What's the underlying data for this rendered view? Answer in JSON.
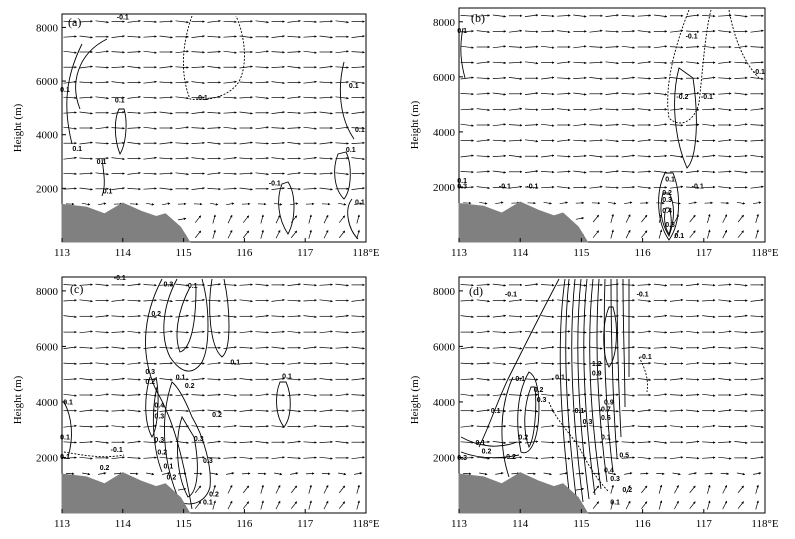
{
  "chart_data": [
    {
      "type": "contour",
      "panel": "(a)",
      "ylabel": "Height (m)",
      "x_ticks": [
        "113",
        "114",
        "115",
        "116",
        "117",
        "118°E"
      ],
      "y_ticks": [
        "2000",
        "4000",
        "6000",
        "8000"
      ],
      "xlim": [
        113,
        118
      ],
      "ylim": [
        0,
        8500
      ],
      "terrain": [
        [
          113,
          1400
        ],
        [
          113.4,
          1300
        ],
        [
          113.7,
          1050
        ],
        [
          114.0,
          1450
        ],
        [
          114.3,
          1150
        ],
        [
          114.55,
          950
        ],
        [
          114.7,
          1050
        ],
        [
          114.95,
          550
        ],
        [
          115.1,
          0
        ]
      ],
      "contour_labels": [
        {
          "text": "-0.1",
          "x": 114.0,
          "y": 8300
        },
        {
          "text": "0.1",
          "x": 113.05,
          "y": 5600
        },
        {
          "text": "0.1",
          "x": 113.95,
          "y": 5200
        },
        {
          "text": "-0.1",
          "x": 115.3,
          "y": 5300
        },
        {
          "text": "0.1",
          "x": 113.25,
          "y": 3400
        },
        {
          "text": "0.1",
          "x": 113.65,
          "y": 2900
        },
        {
          "text": "0.1",
          "x": 117.8,
          "y": 5750
        },
        {
          "text": "0.1",
          "x": 117.9,
          "y": 4100
        },
        {
          "text": "0.1",
          "x": 117.75,
          "y": 3350
        },
        {
          "text": "0.1",
          "x": 113.75,
          "y": 1800
        },
        {
          "text": "-0.1",
          "x": 116.5,
          "y": 2100
        },
        {
          "text": "0.1",
          "x": 117.9,
          "y": 1400
        }
      ]
    },
    {
      "type": "contour",
      "panel": "(b)",
      "ylabel": "Height (m)",
      "x_ticks": [
        "113",
        "114",
        "115",
        "116",
        "117",
        "118°E"
      ],
      "y_ticks": [
        "2000",
        "4000",
        "6000",
        "8000"
      ],
      "xlim": [
        113,
        118
      ],
      "ylim": [
        0,
        8500
      ],
      "terrain": [
        [
          113,
          1400
        ],
        [
          113.4,
          1300
        ],
        [
          113.7,
          1050
        ],
        [
          114.0,
          1450
        ],
        [
          114.3,
          1150
        ],
        [
          114.55,
          950
        ],
        [
          114.7,
          1050
        ],
        [
          114.95,
          550
        ],
        [
          115.1,
          0
        ]
      ],
      "contour_labels": [
        {
          "text": "0.1",
          "x": 113.05,
          "y": 7600
        },
        {
          "text": "-0.1",
          "x": 116.8,
          "y": 7400
        },
        {
          "text": "-0.1",
          "x": 117.05,
          "y": 5200
        },
        {
          "text": "-0.1",
          "x": 117.9,
          "y": 6100
        },
        {
          "text": "-0.2",
          "x": 116.65,
          "y": 5200
        },
        {
          "text": "0.1",
          "x": 113.05,
          "y": 2150
        },
        {
          "text": "0.3",
          "x": 113.05,
          "y": 1950
        },
        {
          "text": "-0.1",
          "x": 113.75,
          "y": 1950
        },
        {
          "text": "-0.1",
          "x": 114.2,
          "y": 1950
        },
        {
          "text": "0.1",
          "x": 116.45,
          "y": 2200
        },
        {
          "text": "-0.1",
          "x": 116.9,
          "y": 1950
        },
        {
          "text": "0.2",
          "x": 116.4,
          "y": 1700
        },
        {
          "text": "0.3",
          "x": 116.4,
          "y": 1450
        },
        {
          "text": "0.4",
          "x": 116.4,
          "y": 1050
        },
        {
          "text": "0.3",
          "x": 116.45,
          "y": 550
        },
        {
          "text": "0.1",
          "x": 116.6,
          "y": 150
        }
      ]
    },
    {
      "type": "contour",
      "panel": "(c)",
      "ylabel": "Height (m)",
      "x_ticks": [
        "113",
        "114",
        "115",
        "116",
        "117",
        "118°E"
      ],
      "y_ticks": [
        "2000",
        "4000",
        "6000",
        "8000"
      ],
      "xlim": [
        113,
        118
      ],
      "ylim": [
        0,
        8500
      ],
      "terrain": [
        [
          113,
          1400
        ],
        [
          113.4,
          1300
        ],
        [
          113.7,
          1050
        ],
        [
          114.0,
          1450
        ],
        [
          114.3,
          1150
        ],
        [
          114.55,
          950
        ],
        [
          114.7,
          1050
        ],
        [
          114.95,
          550
        ],
        [
          115.1,
          0
        ]
      ],
      "contour_labels": [
        {
          "text": "-0.1",
          "x": 113.95,
          "y": 8400
        },
        {
          "text": "0.3",
          "x": 114.75,
          "y": 8150
        },
        {
          "text": "0.1",
          "x": 115.15,
          "y": 8100
        },
        {
          "text": "0.2",
          "x": 114.55,
          "y": 7100
        },
        {
          "text": "0.1",
          "x": 115.85,
          "y": 5350
        },
        {
          "text": "0.3",
          "x": 114.45,
          "y": 5000
        },
        {
          "text": "0.2",
          "x": 114.45,
          "y": 4650
        },
        {
          "text": "0.1",
          "x": 114.95,
          "y": 4800
        },
        {
          "text": "0.2",
          "x": 115.1,
          "y": 4500
        },
        {
          "text": "0.1",
          "x": 116.7,
          "y": 4850
        },
        {
          "text": "0.1",
          "x": 113.1,
          "y": 3900
        },
        {
          "text": "0.4",
          "x": 114.6,
          "y": 3800
        },
        {
          "text": "0.3",
          "x": 114.6,
          "y": 3400
        },
        {
          "text": "0.2",
          "x": 115.55,
          "y": 3450
        },
        {
          "text": "0.1",
          "x": 113.05,
          "y": 2650
        },
        {
          "text": "0.3",
          "x": 114.6,
          "y": 2550
        },
        {
          "text": "0.3",
          "x": 115.25,
          "y": 2600
        },
        {
          "text": "0.2",
          "x": 114.65,
          "y": 2100
        },
        {
          "text": "-0.1",
          "x": 113.9,
          "y": 2200
        },
        {
          "text": "0.1",
          "x": 113.05,
          "y": 1950
        },
        {
          "text": "0.2",
          "x": 113.7,
          "y": 1550
        },
        {
          "text": "0.3",
          "x": 115.4,
          "y": 1800
        },
        {
          "text": "0.1",
          "x": 114.75,
          "y": 1600
        },
        {
          "text": "0.2",
          "x": 114.8,
          "y": 1200
        },
        {
          "text": "0.2",
          "x": 115.5,
          "y": 600
        },
        {
          "text": "0.1",
          "x": 115.4,
          "y": 300
        }
      ]
    },
    {
      "type": "contour",
      "panel": "(d)",
      "ylabel": "Height (m)",
      "x_ticks": [
        "113",
        "114",
        "115",
        "116",
        "117",
        "118°E"
      ],
      "y_ticks": [
        "2000",
        "4000",
        "6000",
        "8000"
      ],
      "xlim": [
        113,
        118
      ],
      "ylim": [
        0,
        8500
      ],
      "terrain": [
        [
          113,
          1400
        ],
        [
          113.4,
          1300
        ],
        [
          113.7,
          1050
        ],
        [
          114.0,
          1450
        ],
        [
          114.3,
          1150
        ],
        [
          114.55,
          950
        ],
        [
          114.7,
          1050
        ],
        [
          114.95,
          550
        ],
        [
          115.1,
          0
        ]
      ],
      "contour_labels": [
        {
          "text": "-0.1",
          "x": 113.85,
          "y": 7800
        },
        {
          "text": "-0.1",
          "x": 116.0,
          "y": 7800
        },
        {
          "text": "-0.1",
          "x": 116.05,
          "y": 5550
        },
        {
          "text": "1.2",
          "x": 115.25,
          "y": 5300
        },
        {
          "text": "0.9",
          "x": 115.25,
          "y": 4950
        },
        {
          "text": "0.1",
          "x": 114.0,
          "y": 4750
        },
        {
          "text": "0.1",
          "x": 114.65,
          "y": 4800
        },
        {
          "text": "0.2",
          "x": 114.3,
          "y": 4350
        },
        {
          "text": "0.3",
          "x": 114.35,
          "y": 4000
        },
        {
          "text": "-0.1",
          "x": 114.95,
          "y": 3600
        },
        {
          "text": "0.9",
          "x": 115.45,
          "y": 3900
        },
        {
          "text": "0.7",
          "x": 115.4,
          "y": 3650
        },
        {
          "text": "0.6",
          "x": 115.4,
          "y": 3350
        },
        {
          "text": "0.3",
          "x": 115.1,
          "y": 3200
        },
        {
          "text": "0.1",
          "x": 113.6,
          "y": 3600
        },
        {
          "text": "0.1",
          "x": 113.35,
          "y": 2450
        },
        {
          "text": "0.2",
          "x": 114.05,
          "y": 2650
        },
        {
          "text": "0.3",
          "x": 113.05,
          "y": 1900
        },
        {
          "text": "0.2",
          "x": 113.45,
          "y": 2150
        },
        {
          "text": "0.2",
          "x": 113.85,
          "y": 1950
        },
        {
          "text": "0.1",
          "x": 115.4,
          "y": 2650
        },
        {
          "text": "0.5",
          "x": 115.7,
          "y": 2000
        },
        {
          "text": "0.4",
          "x": 115.45,
          "y": 1450
        },
        {
          "text": "0.3",
          "x": 115.55,
          "y": 1150
        },
        {
          "text": "0.2",
          "x": 115.75,
          "y": 750
        },
        {
          "text": "0.1",
          "x": 115.55,
          "y": 300
        }
      ]
    }
  ]
}
